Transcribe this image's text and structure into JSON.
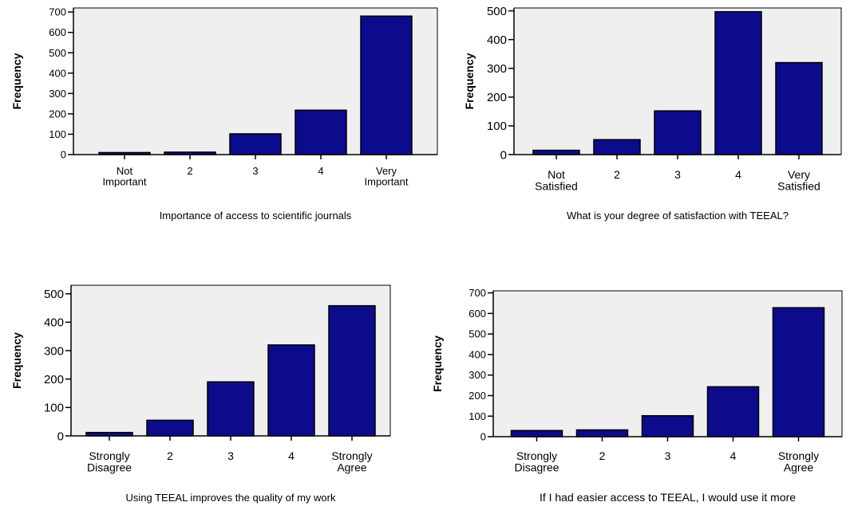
{
  "colors": {
    "bar_fill": "#0b0b8c",
    "plot_background": "#efefef",
    "axis": "#000000"
  },
  "chart_data": [
    {
      "type": "bar",
      "xlabel": "Importance of access to scientific journals",
      "ylabel": "Frequency",
      "categories": [
        "Not\nImportant",
        "2",
        "3",
        "4",
        "Very\nImportant"
      ],
      "values": [
        10,
        12,
        102,
        218,
        680
      ],
      "ylim": [
        0,
        720
      ],
      "yticks": [
        0,
        100,
        200,
        300,
        400,
        500,
        600,
        700
      ],
      "grid": false
    },
    {
      "type": "bar",
      "xlabel": "What is your degree of satisfaction with TEEAL?",
      "ylabel": "Frequency",
      "categories": [
        "Not\nSatisfied",
        "2",
        "3",
        "4",
        "Very\nSatisfied"
      ],
      "values": [
        15,
        52,
        152,
        497,
        320
      ],
      "ylim": [
        0,
        510
      ],
      "yticks": [
        0,
        100,
        200,
        300,
        400,
        500
      ],
      "grid": false
    },
    {
      "type": "bar",
      "xlabel": "Using TEEAL improves the quality of my work",
      "ylabel": "Frequency",
      "categories": [
        "Strongly\nDisagree",
        "2",
        "3",
        "4",
        "Strongly\nAgree"
      ],
      "values": [
        12,
        55,
        190,
        320,
        458
      ],
      "ylim": [
        0,
        530
      ],
      "yticks": [
        0,
        100,
        200,
        300,
        400,
        500
      ],
      "grid": false
    },
    {
      "type": "bar",
      "xlabel": "If I had easier access to TEEAL, I would use it more",
      "ylabel": "Frequency",
      "categories": [
        "Strongly\nDisagree",
        "2",
        "3",
        "4",
        "Strongly\nAgree"
      ],
      "values": [
        30,
        33,
        102,
        243,
        628
      ],
      "ylim": [
        0,
        710
      ],
      "yticks": [
        0,
        100,
        200,
        300,
        400,
        500,
        600,
        700
      ],
      "grid": false
    }
  ]
}
